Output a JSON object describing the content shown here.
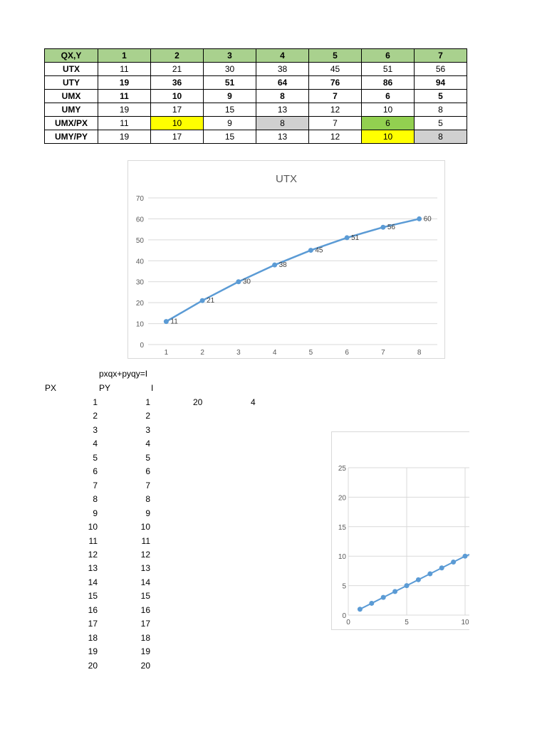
{
  "table": {
    "header": [
      "QX,Y",
      "1",
      "2",
      "3",
      "4",
      "5",
      "6",
      "7"
    ],
    "rows": [
      {
        "label": "UTX",
        "values": [
          "11",
          "21",
          "30",
          "38",
          "45",
          "51",
          "56"
        ],
        "bold": false
      },
      {
        "label": "UTY",
        "values": [
          "19",
          "36",
          "51",
          "64",
          "76",
          "86",
          "94"
        ],
        "bold": true
      },
      {
        "label": "UMX",
        "values": [
          "11",
          "10",
          "9",
          "8",
          "7",
          "6",
          "5"
        ],
        "bold": true
      },
      {
        "label": "UMY",
        "values": [
          "19",
          "17",
          "15",
          "13",
          "12",
          "10",
          "8"
        ],
        "bold": false
      },
      {
        "label": "UMX/PX",
        "values": [
          "11",
          "10",
          "9",
          "8",
          "7",
          "6",
          "5"
        ],
        "bold": false
      },
      {
        "label": "UMY/PY",
        "values": [
          "19",
          "17",
          "15",
          "13",
          "12",
          "10",
          "8"
        ],
        "bold": false
      }
    ],
    "highlight_colors": {
      "header": "#a9d18e",
      "yellow": "#ffff00",
      "gray": "#d0d0d0",
      "green": "#92d050"
    }
  },
  "sheet": {
    "formula": "pxqx+pyqy=I",
    "col_px": "PX",
    "col_py": "PY",
    "col_i": "I",
    "value_a": "20",
    "value_b": "4",
    "px_values": [
      "1",
      "2",
      "3",
      "4",
      "5",
      "6",
      "7",
      "8",
      "9",
      "10",
      "11",
      "12",
      "13",
      "14",
      "15",
      "16",
      "17",
      "18",
      "19",
      "20"
    ],
    "py_values": [
      "1",
      "2",
      "3",
      "4",
      "5",
      "6",
      "7",
      "8",
      "9",
      "10",
      "11",
      "12",
      "13",
      "14",
      "15",
      "16",
      "17",
      "18",
      "19",
      "20"
    ]
  },
  "chart_data": [
    {
      "type": "line",
      "title": "UTX",
      "x": [
        1,
        2,
        3,
        4,
        5,
        6,
        7,
        8
      ],
      "series": [
        {
          "values": [
            11,
            21,
            30,
            38,
            45,
            51,
            56,
            60
          ],
          "color": "#5b9bd5"
        }
      ],
      "xlabel": "",
      "ylabel": "",
      "ylim": [
        0,
        70
      ],
      "yticks": [
        0,
        10,
        20,
        30,
        40,
        50,
        60,
        70
      ],
      "xticks": [
        1,
        2,
        3,
        4,
        5,
        6,
        7,
        8
      ],
      "data_labels": true,
      "grid": "horizontal"
    },
    {
      "type": "scatter",
      "title": "",
      "x": [
        1,
        2,
        3,
        4,
        5,
        6,
        7,
        8,
        9,
        10
      ],
      "series": [
        {
          "values": [
            1,
            2,
            3,
            4,
            5,
            6,
            7,
            8,
            9,
            10
          ],
          "color": "#5b9bd5"
        }
      ],
      "xlim": [
        0,
        10
      ],
      "ylim": [
        0,
        25
      ],
      "yticks": [
        0,
        5,
        10,
        15,
        20,
        25
      ],
      "xticks": [
        0,
        5,
        10
      ],
      "grid": "both"
    }
  ]
}
